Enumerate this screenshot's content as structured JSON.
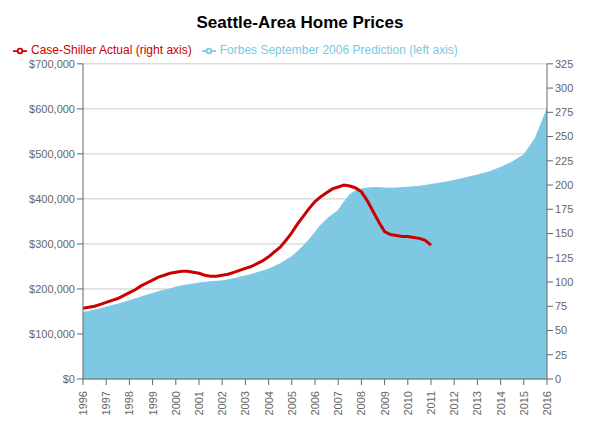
{
  "chart_data": {
    "type": "line",
    "title": "Seattle-Area Home Prices",
    "series": [
      {
        "name": "Forbes September 2006 Prediction (left axis)",
        "type": "area",
        "color": "#7EC8E3",
        "x": [
          1996,
          1996.25,
          1996.5,
          1996.75,
          1997,
          1997.25,
          1997.5,
          1997.75,
          1998,
          1998.25,
          1998.5,
          1998.75,
          1999,
          1999.25,
          1999.5,
          1999.75,
          2000,
          2000.25,
          2000.5,
          2000.75,
          2001,
          2001.25,
          2001.5,
          2001.75,
          2002,
          2002.25,
          2002.5,
          2002.75,
          2003,
          2003.25,
          2003.5,
          2003.75,
          2004,
          2004.25,
          2004.5,
          2004.75,
          2005,
          2005.25,
          2005.5,
          2005.75,
          2006,
          2006.25,
          2006.5,
          2006.75,
          2007,
          2007.25,
          2007.5,
          2007.75,
          2008,
          2008.25,
          2008.5,
          2008.75,
          2009,
          2009.25,
          2009.5,
          2009.75,
          2010,
          2010.25,
          2010.5,
          2010.75,
          2011,
          2011.5,
          2012,
          2012.5,
          2013,
          2013.5,
          2014,
          2014.5,
          2015,
          2015.5,
          2016
        ],
        "values": [
          148000,
          150000,
          153000,
          156000,
          160000,
          163000,
          166000,
          170000,
          174000,
          178000,
          182000,
          186000,
          190000,
          194000,
          197000,
          200000,
          204000,
          207000,
          209000,
          211000,
          213000,
          215000,
          216000,
          217000,
          218000,
          220000,
          223000,
          226000,
          229000,
          232000,
          236000,
          240000,
          244000,
          250000,
          256000,
          264000,
          272000,
          283000,
          296000,
          310000,
          326000,
          342000,
          355000,
          365000,
          374000,
          393000,
          410000,
          418000,
          422000,
          424000,
          425000,
          425000,
          424000,
          424000,
          424000,
          425000,
          426000,
          427000,
          428000,
          430000,
          432000,
          436000,
          441000,
          447000,
          453000,
          460000,
          470000,
          482000,
          498000,
          535000,
          600000
        ]
      },
      {
        "name": "Case-Shiller Actual (right axis)",
        "type": "line",
        "color": "#CC0000",
        "axis": "y2",
        "x": [
          1996,
          1996.25,
          1996.5,
          1996.75,
          1997,
          1997.25,
          1997.5,
          1997.75,
          1998,
          1998.25,
          1998.5,
          1998.75,
          1999,
          1999.25,
          1999.5,
          1999.75,
          2000,
          2000.25,
          2000.5,
          2000.75,
          2001,
          2001.25,
          2001.5,
          2001.75,
          2002,
          2002.25,
          2002.5,
          2002.75,
          2003,
          2003.25,
          2003.5,
          2003.75,
          2004,
          2004.25,
          2004.5,
          2004.75,
          2005,
          2005.25,
          2005.5,
          2005.75,
          2006,
          2006.25,
          2006.5,
          2006.75,
          2007,
          2007.25,
          2007.5,
          2007.75,
          2008,
          2008.25,
          2008.5,
          2008.75,
          2009,
          2009.25,
          2009.5,
          2009.75,
          2010,
          2010.25,
          2010.5,
          2010.75,
          2011
        ],
        "values": [
          73,
          74,
          75,
          77,
          79,
          81,
          83,
          86,
          89,
          92,
          96,
          99,
          102,
          105,
          107,
          109,
          110,
          111,
          111,
          110,
          109,
          107,
          106,
          106,
          107,
          108,
          110,
          112,
          114,
          116,
          119,
          122,
          126,
          131,
          136,
          143,
          151,
          160,
          168,
          176,
          183,
          188,
          192,
          196,
          198,
          200,
          199,
          197,
          193,
          184,
          173,
          162,
          152,
          149,
          148,
          147,
          147,
          146,
          145,
          143,
          138
        ]
      }
    ],
    "xlim": [
      1996,
      2016
    ],
    "xticks": [
      1996,
      1997,
      1998,
      1999,
      2000,
      2001,
      2002,
      2003,
      2004,
      2005,
      2006,
      2007,
      2008,
      2009,
      2010,
      2011,
      2012,
      2013,
      2014,
      2015,
      2016
    ],
    "ylim": [
      0,
      700000
    ],
    "yticks": [
      {
        "value": 0,
        "label": "$0"
      },
      {
        "value": 100000,
        "label": "$100,000"
      },
      {
        "value": 200000,
        "label": "$200,000"
      },
      {
        "value": 300000,
        "label": "$300,000"
      },
      {
        "value": 400000,
        "label": "$400,000"
      },
      {
        "value": 500000,
        "label": "$500,000"
      },
      {
        "value": 600000,
        "label": "$600,000"
      },
      {
        "value": 700000,
        "label": "$700,000"
      }
    ],
    "y2lim": [
      0,
      325
    ],
    "y2ticks": [
      0,
      25,
      50,
      75,
      100,
      125,
      150,
      175,
      200,
      225,
      250,
      275,
      300,
      325
    ],
    "grid": "y",
    "legend": "top-left"
  }
}
